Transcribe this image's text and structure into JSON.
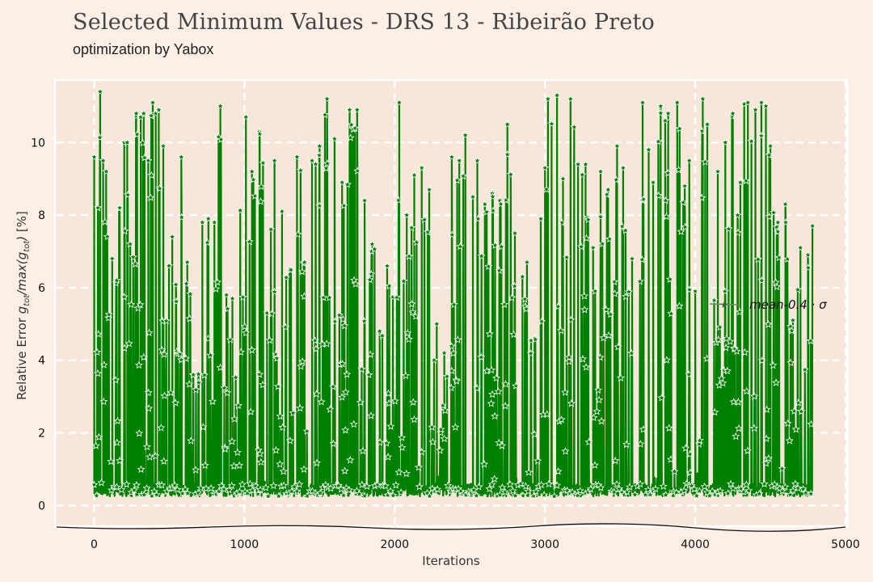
{
  "chart_data": {
    "type": "line",
    "title": "Selected Minimum Values - DRS 13 - Ribeirão Preto",
    "subtitle": "optimization by Yabox",
    "xlabel": "Iterations",
    "ylabel": "Relative Error g_tot/max(g_tot) [%]",
    "xlim": [
      -250,
      5000
    ],
    "ylim": [
      -0.55,
      11.7
    ],
    "xticks": [
      "0",
      "1000",
      "2000",
      "3000",
      "4000",
      "5000"
    ],
    "yticks": [
      "0",
      "2",
      "4",
      "6",
      "8",
      "10"
    ],
    "grid": true,
    "legend_position": "right",
    "series": [
      {
        "name": "mean-0.4 · σ",
        "color": "#008000",
        "marker": "star",
        "n_points": 4780,
        "x_range": [
          0,
          4780
        ],
        "baseline_approx": 0.25,
        "peaks": [
          [
            0,
            9.6
          ],
          [
            25,
            8.2
          ],
          [
            40,
            11.4
          ],
          [
            60,
            9.5
          ],
          [
            80,
            9.2
          ],
          [
            120,
            6.8
          ],
          [
            150,
            6.2
          ],
          [
            170,
            8.2
          ],
          [
            200,
            10
          ],
          [
            220,
            10
          ],
          [
            240,
            7.2
          ],
          [
            280,
            10.8
          ],
          [
            310,
            10.7
          ],
          [
            330,
            10.8
          ],
          [
            360,
            9.5
          ],
          [
            390,
            11.1
          ],
          [
            410,
            10.8
          ],
          [
            430,
            10.9
          ],
          [
            460,
            9.9
          ],
          [
            520,
            7.4
          ],
          [
            580,
            9.6
          ],
          [
            620,
            6.7
          ],
          [
            660,
            3.6
          ],
          [
            720,
            7.8
          ],
          [
            760,
            7.9
          ],
          [
            800,
            7.8
          ],
          [
            840,
            11
          ],
          [
            880,
            5.8
          ],
          [
            920,
            5.7
          ],
          [
            1010,
            10.7
          ],
          [
            1050,
            9.2
          ],
          [
            1100,
            10.3
          ],
          [
            1150,
            5.3
          ],
          [
            1200,
            9.5
          ],
          [
            1250,
            8.1
          ],
          [
            1300,
            6.5
          ],
          [
            1350,
            9.6
          ],
          [
            1400,
            6.7
          ],
          [
            1450,
            9.5
          ],
          [
            1500,
            9.9
          ],
          [
            1550,
            11.2
          ],
          [
            1600,
            10.1
          ],
          [
            1650,
            8.9
          ],
          [
            1700,
            10.9
          ],
          [
            1750,
            10.9
          ],
          [
            1800,
            8.4
          ],
          [
            1850,
            7.2
          ],
          [
            1900,
            4.8
          ],
          [
            1950,
            6.6
          ],
          [
            2030,
            11.1
          ],
          [
            2080,
            8
          ],
          [
            2130,
            9.1
          ],
          [
            2180,
            9.3
          ],
          [
            2230,
            8.7
          ],
          [
            2280,
            5
          ],
          [
            2330,
            4.2
          ],
          [
            2380,
            9.6
          ],
          [
            2430,
            9.5
          ],
          [
            2470,
            10.2
          ],
          [
            2520,
            8.5
          ],
          [
            2550,
            9.5
          ],
          [
            2600,
            8.3
          ],
          [
            2650,
            8.6
          ],
          [
            2700,
            8.4
          ],
          [
            2750,
            10.5
          ],
          [
            2800,
            7.5
          ],
          [
            2850,
            6.3
          ],
          [
            2880,
            6.7
          ],
          [
            2930,
            4.6
          ],
          [
            3000,
            9.3
          ],
          [
            3020,
            11.2
          ],
          [
            3080,
            11.3
          ],
          [
            3120,
            9
          ],
          [
            3170,
            11.2
          ],
          [
            3220,
            9.4
          ],
          [
            3270,
            9.4
          ],
          [
            3320,
            7.1
          ],
          [
            3370,
            9.2
          ],
          [
            3420,
            8.7
          ],
          [
            3480,
            9.9
          ],
          [
            3520,
            9.3
          ],
          [
            3580,
            6.8
          ],
          [
            3650,
            11.1
          ],
          [
            3690,
            9.8
          ],
          [
            3720,
            8.9
          ],
          [
            3770,
            11
          ],
          [
            3800,
            10.6
          ],
          [
            3820,
            10.8
          ],
          [
            3880,
            11.1
          ],
          [
            3930,
            8.8
          ],
          [
            3960,
            9.5
          ],
          [
            4000,
            5.9
          ],
          [
            4050,
            11.2
          ],
          [
            4080,
            10.5
          ],
          [
            4150,
            9.2
          ],
          [
            4200,
            10
          ],
          [
            4250,
            10.8
          ],
          [
            4300,
            8.9
          ],
          [
            4350,
            11.1
          ],
          [
            4400,
            10.9
          ],
          [
            4440,
            11.1
          ],
          [
            4470,
            11
          ],
          [
            4500,
            9.9
          ],
          [
            4550,
            7.8
          ],
          [
            4600,
            8.3
          ],
          [
            4650,
            5.1
          ],
          [
            4700,
            7.1
          ],
          [
            4750,
            6.9
          ],
          [
            4780,
            7.7
          ]
        ]
      }
    ]
  }
}
